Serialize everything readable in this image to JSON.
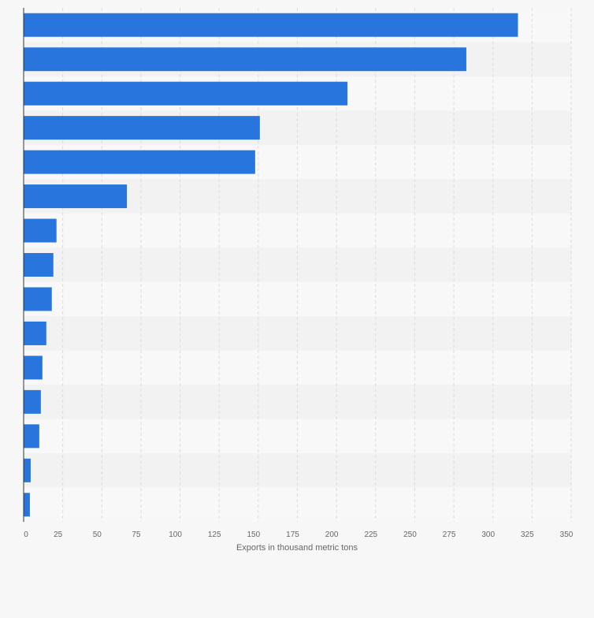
{
  "chart_data": {
    "type": "bar",
    "orientation": "horizontal",
    "categories": [
      "",
      "",
      "",
      "",
      "",
      "",
      "",
      "",
      "",
      "",
      "",
      "",
      "",
      "",
      ""
    ],
    "values": [
      316,
      283,
      207,
      151,
      148,
      66,
      21,
      19,
      18,
      14.5,
      12,
      11,
      10,
      4.5,
      4
    ],
    "xlabel": "Exports in thousand metric tons",
    "ylabel": "",
    "xlim": [
      0,
      350
    ],
    "xticks": [
      0,
      25,
      50,
      75,
      100,
      125,
      150,
      175,
      200,
      225,
      250,
      275,
      300,
      325,
      350
    ],
    "grid": true,
    "legend": "none",
    "colors": {
      "bar": "#2876dd",
      "band_light": "#f8f8f8",
      "band_dark": "#f2f2f2",
      "grid": "#dcdcdc",
      "axis": "#333333",
      "tick_text": "#666666"
    }
  }
}
